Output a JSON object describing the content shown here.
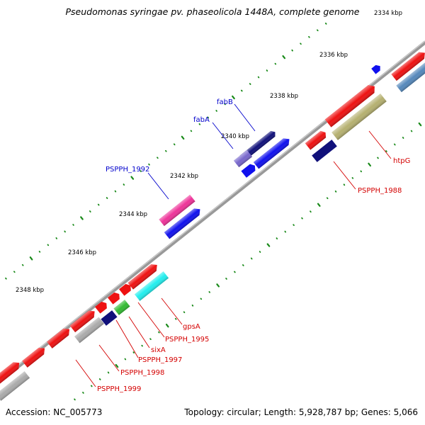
{
  "title": "Pseudomonas syringae pv. phaseolicola 1448A, complete genome",
  "footer": {
    "accession": "Accession: NC_005773",
    "summary": "Topology: circular; Length: 5,928,787 bp; Genes: 5,066"
  },
  "ticks": [
    "2334 kbp",
    "2336 kbp",
    "2338 kbp",
    "2340 kbp",
    "2342 kbp",
    "2344 kbp",
    "2346 kbp",
    "2348 kbp"
  ],
  "gene_labels": {
    "fabB": "fabB",
    "fabA": "fabA",
    "pspph1992": "PSPPH_1992",
    "htpG": "htpG",
    "pspph1988": "PSPPH_1988",
    "gpsA": "gpsA",
    "pspph1995": "PSPPH_1995",
    "sixA": "sixA",
    "pspph1997": "PSPPH_1997",
    "pspph1998": "PSPPH_1998",
    "pspph1999": "PSPPH_1999"
  },
  "colors": {
    "backbone": "#808080",
    "tick_dots": "#1a8a1a",
    "red_gene": "#ee1111",
    "blue_gene": "#1010ee",
    "navy_gene": "#10107a",
    "olive_gene": "#b5b070",
    "steel_gene": "#5588bb",
    "violet_gene": "#7766cc",
    "magenta_gene": "#ee3399",
    "cyan_gene": "#22eeee",
    "green_gene": "#33bb33",
    "gray_gene": "#aaaaaa",
    "label_blue": "#0000cc",
    "label_red": "#d40000"
  }
}
